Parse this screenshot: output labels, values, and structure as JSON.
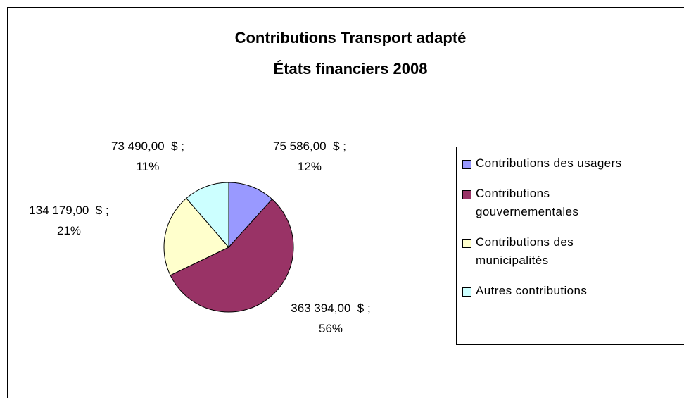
{
  "chart_data": {
    "type": "pie",
    "title": [
      "Contributions Transport adapté",
      "États financiers 2008"
    ],
    "categories": [
      "Contributions des usagers",
      "Contributions\ngouvernementales",
      "Contributions des\nmunicipalités",
      "Autres contributions"
    ],
    "values": [
      75586,
      363394,
      134179,
      73490
    ],
    "value_labels": [
      "75 586,00  $ ;",
      "363 394,00  $ ;",
      "134 179,00  $ ;",
      "73 490,00  $ ;"
    ],
    "percent_labels": [
      "12%",
      "56%",
      "21%",
      "11%"
    ],
    "colors": [
      "#9999ff",
      "#993366",
      "#ffffcc",
      "#ccffff"
    ],
    "legend": "right"
  }
}
